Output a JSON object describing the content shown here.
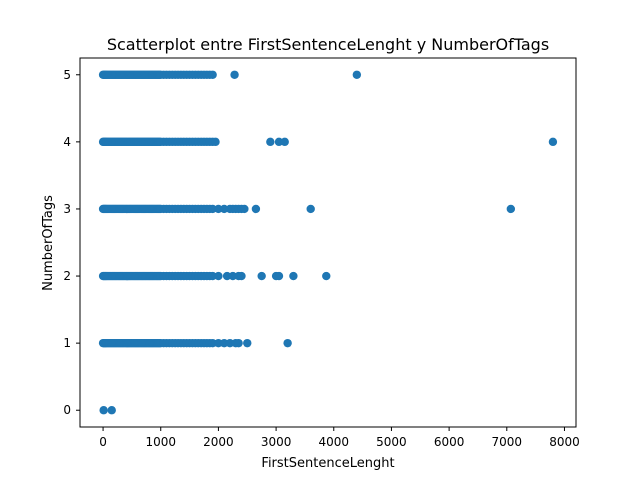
{
  "chart_data": {
    "type": "scatter",
    "title": "Scatterplot entre FirstSentenceLenght y NumberOfTags",
    "xlabel": "FirstSentenceLenght",
    "ylabel": "NumberOfTags",
    "xlim": [
      -400,
      8200
    ],
    "ylim": [
      -0.25,
      5.25
    ],
    "xticks": [
      0,
      1000,
      2000,
      3000,
      4000,
      5000,
      6000,
      7000,
      8000
    ],
    "yticks": [
      0,
      1,
      2,
      3,
      4,
      5
    ],
    "grid": false,
    "marker_color": "#1f77b4",
    "series": [
      {
        "x": [
          0,
          15,
          30,
          45,
          60,
          80,
          100,
          120,
          140,
          160,
          180,
          200,
          220,
          240,
          260,
          280,
          300,
          320,
          340,
          360,
          380,
          400,
          420,
          440,
          460,
          480,
          500,
          520,
          540,
          560,
          580,
          600,
          620,
          640,
          660,
          680,
          700,
          720,
          740,
          760,
          780,
          800,
          820,
          840,
          860,
          880,
          900,
          920,
          940,
          960,
          980,
          1000,
          1050,
          1100,
          1150,
          1200,
          1250,
          1300,
          1350,
          1400,
          1450,
          1500,
          1550,
          1600,
          1650,
          1700,
          1750,
          1800,
          1850,
          1900,
          0,
          15,
          30,
          45,
          60,
          80,
          100,
          120,
          140,
          160,
          180,
          200,
          220,
          240,
          260,
          280,
          300,
          320,
          340,
          360,
          380,
          400,
          420,
          440,
          460,
          480,
          500,
          520,
          540,
          560,
          580,
          600,
          620,
          640,
          660,
          680,
          700,
          720,
          740,
          760,
          780,
          800,
          820,
          840,
          860,
          880,
          900,
          920,
          940,
          960,
          980,
          1000,
          1050,
          1100,
          1150,
          1200,
          1250,
          1300,
          1350,
          1400,
          1450,
          1500,
          1550,
          1600,
          1650,
          1700,
          1750,
          1800,
          1850,
          1900,
          0,
          15,
          30,
          45,
          60,
          80,
          100,
          120,
          140,
          160,
          180,
          200,
          220,
          240,
          260,
          280,
          300,
          320,
          340,
          360,
          380,
          400,
          420,
          440,
          460,
          480,
          500,
          520,
          540,
          560,
          580,
          600,
          620,
          640,
          660,
          680,
          700,
          720,
          740,
          760,
          780,
          800,
          820,
          840,
          860,
          880,
          900,
          920,
          940,
          960,
          980,
          1000,
          1050,
          1100,
          1150,
          1200,
          1250,
          1300,
          1350,
          1400,
          1450,
          1500,
          1550,
          1600,
          1650,
          1700,
          1750,
          1800,
          1850,
          1900,
          0,
          15,
          30,
          45,
          60,
          80,
          100,
          120,
          140,
          160,
          180,
          200,
          220,
          240,
          260,
          280,
          300,
          320,
          340,
          360,
          380,
          400,
          420,
          440,
          460,
          480,
          500,
          520,
          540,
          560,
          580,
          600,
          620,
          640,
          660,
          680,
          700,
          720,
          740,
          760,
          780,
          800,
          820,
          840,
          860,
          880,
          900,
          920,
          940,
          960,
          980,
          1000,
          1050,
          1100,
          1150,
          1200,
          1250,
          1300,
          1350,
          1400,
          1450,
          1500,
          1550,
          1600,
          1650,
          1700,
          1750,
          1800,
          1850,
          1900,
          0,
          15,
          30,
          45,
          60,
          80,
          100,
          120,
          140,
          160,
          180,
          200,
          220,
          240,
          260,
          280,
          300,
          320,
          340,
          360,
          380,
          400,
          420,
          440,
          460,
          480,
          500,
          520,
          540,
          560,
          580,
          600,
          620,
          640,
          660,
          680,
          700,
          720,
          740,
          760,
          780,
          800,
          820,
          840,
          860,
          880,
          900,
          920,
          940,
          960,
          980,
          1000,
          1050,
          1100,
          1150,
          1200,
          1250,
          1300,
          1350,
          1400,
          1450,
          1500,
          1550,
          1600,
          1650,
          1700,
          1750,
          1800,
          1850,
          1900,
          10,
          150,
          2000,
          2100,
          2200,
          2300,
          2350,
          2500,
          3200,
          2000,
          2150,
          2250,
          2350,
          2400,
          2750,
          3000,
          3050,
          3300,
          3870,
          2000,
          2100,
          2200,
          2250,
          2300,
          2350,
          2400,
          2450,
          2650,
          3600,
          7070,
          1950,
          2900,
          3050,
          3150,
          7800,
          2280,
          4400
        ],
        "y": [
          1,
          1,
          1,
          1,
          1,
          1,
          1,
          1,
          1,
          1,
          1,
          1,
          1,
          1,
          1,
          1,
          1,
          1,
          1,
          1,
          1,
          1,
          1,
          1,
          1,
          1,
          1,
          1,
          1,
          1,
          1,
          1,
          1,
          1,
          1,
          1,
          1,
          1,
          1,
          1,
          1,
          1,
          1,
          1,
          1,
          1,
          1,
          1,
          1,
          1,
          1,
          1,
          1,
          1,
          1,
          1,
          1,
          1,
          1,
          1,
          1,
          1,
          1,
          1,
          1,
          1,
          1,
          1,
          1,
          1,
          2,
          2,
          2,
          2,
          2,
          2,
          2,
          2,
          2,
          2,
          2,
          2,
          2,
          2,
          2,
          2,
          2,
          2,
          2,
          2,
          2,
          2,
          2,
          2,
          2,
          2,
          2,
          2,
          2,
          2,
          2,
          2,
          2,
          2,
          2,
          2,
          2,
          2,
          2,
          2,
          2,
          2,
          2,
          2,
          2,
          2,
          2,
          2,
          2,
          2,
          2,
          2,
          2,
          2,
          2,
          2,
          2,
          2,
          2,
          2,
          2,
          2,
          2,
          2,
          2,
          2,
          2,
          2,
          2,
          2,
          3,
          3,
          3,
          3,
          3,
          3,
          3,
          3,
          3,
          3,
          3,
          3,
          3,
          3,
          3,
          3,
          3,
          3,
          3,
          3,
          3,
          3,
          3,
          3,
          3,
          3,
          3,
          3,
          3,
          3,
          3,
          3,
          3,
          3,
          3,
          3,
          3,
          3,
          3,
          3,
          3,
          3,
          3,
          3,
          3,
          3,
          3,
          3,
          3,
          3,
          3,
          3,
          3,
          3,
          3,
          3,
          3,
          3,
          3,
          3,
          3,
          3,
          3,
          3,
          3,
          3,
          3,
          3,
          3,
          3,
          4,
          4,
          4,
          4,
          4,
          4,
          4,
          4,
          4,
          4,
          4,
          4,
          4,
          4,
          4,
          4,
          4,
          4,
          4,
          4,
          4,
          4,
          4,
          4,
          4,
          4,
          4,
          4,
          4,
          4,
          4,
          4,
          4,
          4,
          4,
          4,
          4,
          4,
          4,
          4,
          4,
          4,
          4,
          4,
          4,
          4,
          4,
          4,
          4,
          4,
          4,
          4,
          4,
          4,
          4,
          4,
          4,
          4,
          4,
          4,
          4,
          4,
          4,
          4,
          4,
          4,
          4,
          4,
          4,
          4,
          5,
          5,
          5,
          5,
          5,
          5,
          5,
          5,
          5,
          5,
          5,
          5,
          5,
          5,
          5,
          5,
          5,
          5,
          5,
          5,
          5,
          5,
          5,
          5,
          5,
          5,
          5,
          5,
          5,
          5,
          5,
          5,
          5,
          5,
          5,
          5,
          5,
          5,
          5,
          5,
          5,
          5,
          5,
          5,
          5,
          5,
          5,
          5,
          5,
          5,
          5,
          5,
          5,
          5,
          5,
          5,
          5,
          5,
          5,
          5,
          5,
          5,
          5,
          5,
          5,
          5,
          5,
          5,
          5,
          5,
          0,
          0,
          1,
          1,
          1,
          1,
          1,
          1,
          1,
          2,
          2,
          2,
          2,
          2,
          2,
          2,
          2,
          2,
          2,
          3,
          3,
          3,
          3,
          3,
          3,
          3,
          3,
          3,
          3,
          3,
          4,
          4,
          4,
          4,
          4,
          5,
          5
        ]
      }
    ]
  }
}
